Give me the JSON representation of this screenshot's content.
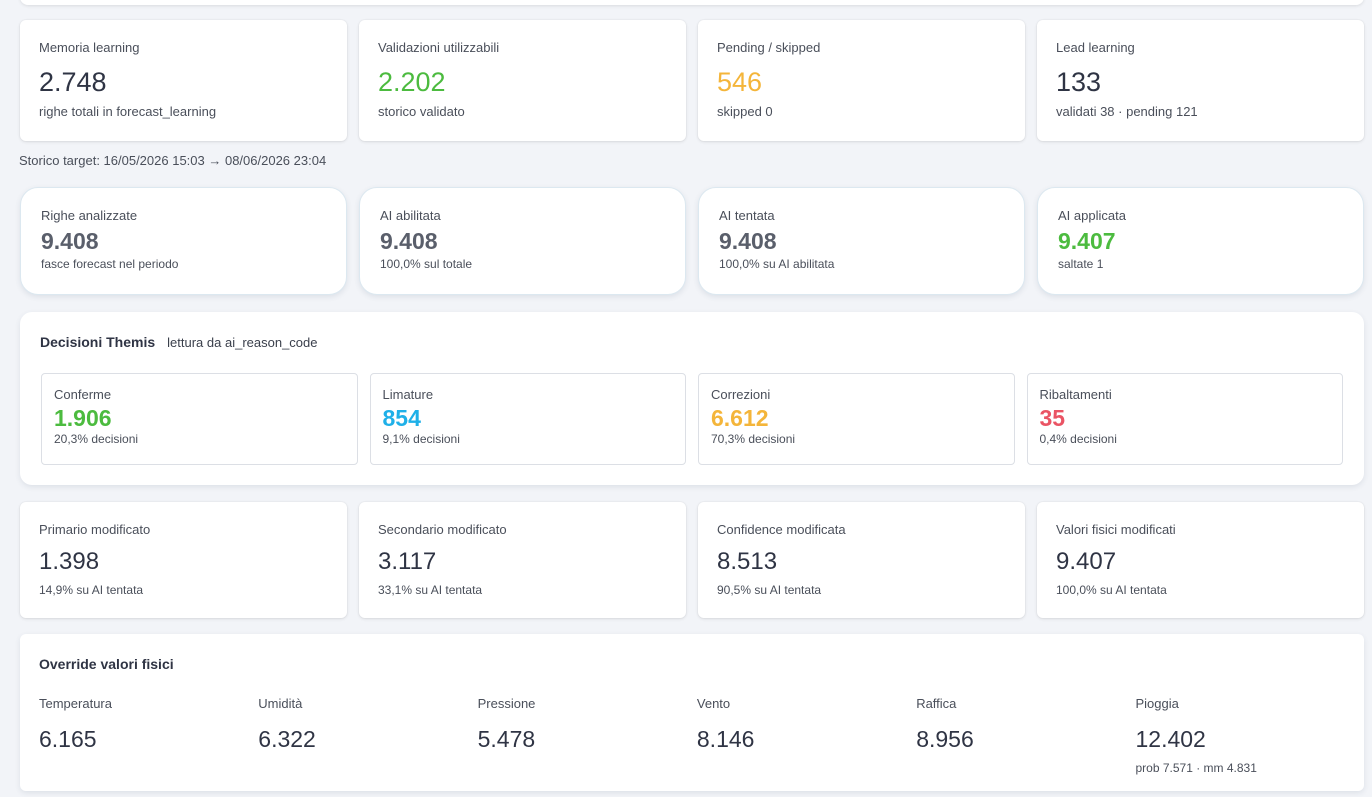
{
  "learning_stats": [
    {
      "label": "Memoria learning",
      "value": "2.748",
      "sub": "righe totali in forecast_learning",
      "color": ""
    },
    {
      "label": "Validazioni utilizzabili",
      "value": "2.202",
      "sub": "storico validato",
      "color": "green"
    },
    {
      "label": "Pending / skipped",
      "value": "546",
      "sub": "skipped 0",
      "color": "orange"
    },
    {
      "label": "Lead learning",
      "value": "133",
      "sub": "validati 38 · pending 121",
      "color": ""
    }
  ],
  "history_target": "Storico target: 16/05/2026 15:03 → 08/06/2026 23:04",
  "ai_stats": [
    {
      "label": "Righe analizzate",
      "value": "9.408",
      "sub": "fasce forecast nel periodo",
      "color": ""
    },
    {
      "label": "AI abilitata",
      "value": "9.408",
      "sub": "100,0% sul totale",
      "color": ""
    },
    {
      "label": "AI tentata",
      "value": "9.408",
      "sub": "100,0% su AI abilitata",
      "color": ""
    },
    {
      "label": "AI applicata",
      "value": "9.407",
      "sub": "saltate 1",
      "color": "green"
    }
  ],
  "decisions": {
    "title": "Decisioni Themis",
    "hint": "lettura da ai_reason_code",
    "items": [
      {
        "label": "Conferme",
        "value": "1.906",
        "sub": "20,3% decisioni",
        "color": "green"
      },
      {
        "label": "Limature",
        "value": "854",
        "sub": "9,1% decisioni",
        "color": "blue"
      },
      {
        "label": "Correzioni",
        "value": "6.612",
        "sub": "70,3% decisioni",
        "color": "orange"
      },
      {
        "label": "Ribaltamenti",
        "value": "35",
        "sub": "0,4% decisioni",
        "color": "red"
      }
    ]
  },
  "modification_stats": [
    {
      "label": "Primario modificato",
      "value": "1.398",
      "sub": "14,9% su AI tentata"
    },
    {
      "label": "Secondario modificato",
      "value": "3.117",
      "sub": "33,1% su AI tentata"
    },
    {
      "label": "Confidence modificata",
      "value": "8.513",
      "sub": "90,5% su AI tentata"
    },
    {
      "label": "Valori fisici modificati",
      "value": "9.407",
      "sub": "100,0% su AI tentata"
    }
  ],
  "overrides": {
    "title": "Override valori fisici",
    "items": [
      {
        "label": "Temperatura",
        "value": "6.165",
        "sub": ""
      },
      {
        "label": "Umidità",
        "value": "6.322",
        "sub": ""
      },
      {
        "label": "Pressione",
        "value": "5.478",
        "sub": ""
      },
      {
        "label": "Vento",
        "value": "8.146",
        "sub": ""
      },
      {
        "label": "Raffica",
        "value": "8.956",
        "sub": ""
      },
      {
        "label": "Pioggia",
        "value": "12.402",
        "sub": "prob 7.571 · mm 4.831"
      }
    ]
  },
  "colors": {
    "green": "#4cbb3f",
    "orange": "#f4b53a",
    "blue": "#1fb0e8",
    "red": "#ea5464"
  }
}
